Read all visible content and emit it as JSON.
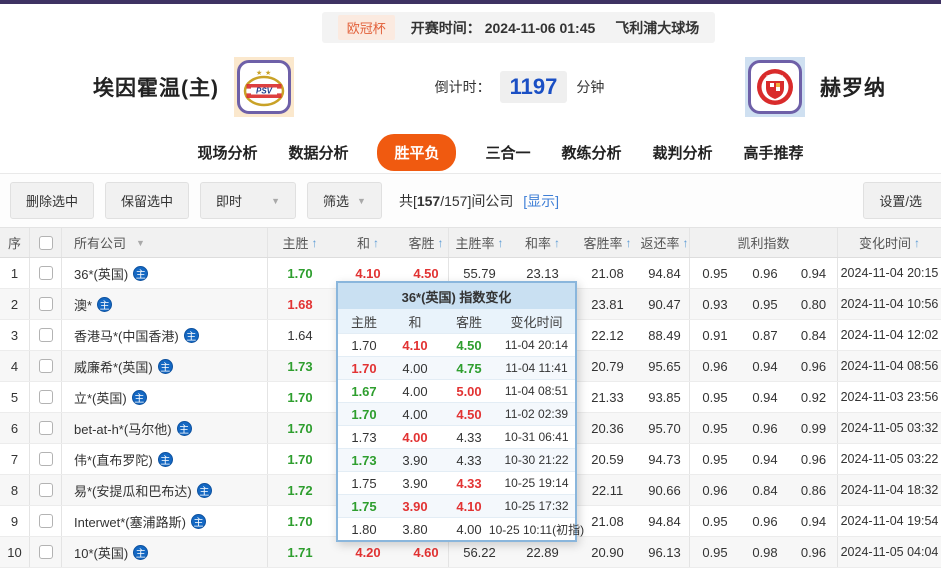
{
  "icons": {
    "sort_arrow": "↑",
    "caret_down": "▼",
    "home_badge": "主"
  },
  "top": {
    "league": "欧冠杯",
    "kickoff_label": "开赛时间：",
    "kickoff_time": "2024-11-06 01:45",
    "venue": "飞利浦大球场"
  },
  "teams": {
    "home_name": "埃因霍温(主)",
    "home_logo": "PSV",
    "away_name": "赫罗纳",
    "away_logo": "GIRONA",
    "countdown_label": "倒计时：",
    "countdown_value": "1197",
    "countdown_unit": "分钟"
  },
  "tabs": [
    {
      "label": "现场分析",
      "active": false
    },
    {
      "label": "数据分析",
      "active": false
    },
    {
      "label": "胜平负",
      "active": true
    },
    {
      "label": "三合一",
      "active": false
    },
    {
      "label": "教练分析",
      "active": false
    },
    {
      "label": "裁判分析",
      "active": false
    },
    {
      "label": "高手推荐",
      "active": false
    }
  ],
  "toolbar": {
    "delete_btn": "删除选中",
    "keep_btn": "保留选中",
    "time_filter": "即时",
    "filter_btn": "筛选",
    "count_prefix": "共[",
    "count_current": "157",
    "count_suffix": "/157]间公司",
    "show_link": "[显示]",
    "settings_btn": "设置/选"
  },
  "table": {
    "headers": {
      "seq": "序",
      "company": "所有公司",
      "home": "主胜",
      "draw": "和",
      "away": "客胜",
      "home_rate": "主胜率",
      "draw_rate": "和率",
      "away_rate": "客胜率",
      "return_rate": "返还率",
      "kelly": "凯利指数",
      "time": "变化时间"
    },
    "rows": [
      {
        "seq": "1",
        "company": "36*(英国)",
        "home": {
          "v": "1.70",
          "c": "green"
        },
        "draw": {
          "v": "4.10",
          "c": "red"
        },
        "away": {
          "v": "4.50",
          "c": "red"
        },
        "hr": "55.79",
        "dr": "23.13",
        "ar": "21.08",
        "rr": "94.84",
        "kelly": [
          "0.95",
          "0.96",
          "0.94"
        ],
        "time": "2024-11-04 20:15"
      },
      {
        "seq": "2",
        "company": "澳*",
        "home": {
          "v": "1.68",
          "c": "red"
        },
        "draw": null,
        "away": null,
        "hr": null,
        "dr": null,
        "ar": "23.81",
        "rr": "90.47",
        "kelly": [
          "0.93",
          "0.95",
          "0.80"
        ],
        "time": "2024-11-04 10:56"
      },
      {
        "seq": "3",
        "company": "香港马*(中国香港)",
        "home": {
          "v": "1.64",
          "c": "black"
        },
        "draw": null,
        "away": null,
        "hr": null,
        "dr": null,
        "ar": "22.12",
        "rr": "88.49",
        "kelly": [
          "0.91",
          "0.87",
          "0.84"
        ],
        "time": "2024-11-04 12:02"
      },
      {
        "seq": "4",
        "company": "威廉希*(英国)",
        "home": {
          "v": "1.73",
          "c": "green"
        },
        "draw": null,
        "away": null,
        "hr": null,
        "dr": null,
        "ar": "20.79",
        "rr": "95.65",
        "kelly": [
          "0.96",
          "0.94",
          "0.96"
        ],
        "time": "2024-11-04 08:56"
      },
      {
        "seq": "5",
        "company": "立*(英国)",
        "home": {
          "v": "1.70",
          "c": "green"
        },
        "draw": null,
        "away": null,
        "hr": null,
        "dr": null,
        "ar": "21.33",
        "rr": "93.85",
        "kelly": [
          "0.95",
          "0.94",
          "0.92"
        ],
        "time": "2024-11-03 23:56"
      },
      {
        "seq": "6",
        "company": "bet-at-h*(马尔他)",
        "home": {
          "v": "1.70",
          "c": "green"
        },
        "draw": null,
        "away": null,
        "hr": null,
        "dr": null,
        "ar": "20.36",
        "rr": "95.70",
        "kelly": [
          "0.95",
          "0.96",
          "0.99"
        ],
        "time": "2024-11-05 03:32"
      },
      {
        "seq": "7",
        "company": "伟*(直布罗陀)",
        "home": {
          "v": "1.70",
          "c": "green"
        },
        "draw": null,
        "away": null,
        "hr": null,
        "dr": null,
        "ar": "20.59",
        "rr": "94.73",
        "kelly": [
          "0.95",
          "0.94",
          "0.96"
        ],
        "time": "2024-11-05 03:22"
      },
      {
        "seq": "8",
        "company": "易*(安提瓜和巴布达)",
        "home": {
          "v": "1.72",
          "c": "green"
        },
        "draw": null,
        "away": null,
        "hr": null,
        "dr": null,
        "ar": "22.11",
        "rr": "90.66",
        "kelly": [
          "0.96",
          "0.84",
          "0.86"
        ],
        "time": "2024-11-04 18:32"
      },
      {
        "seq": "9",
        "company": "Interwet*(塞浦路斯)",
        "home": {
          "v": "1.70",
          "c": "green"
        },
        "draw": null,
        "away": null,
        "hr": null,
        "dr": null,
        "ar": "21.08",
        "rr": "94.84",
        "kelly": [
          "0.95",
          "0.96",
          "0.94"
        ],
        "time": "2024-11-04 19:54"
      },
      {
        "seq": "10",
        "company": "10*(英国)",
        "home": {
          "v": "1.71",
          "c": "green"
        },
        "draw": {
          "v": "4.20",
          "c": "red"
        },
        "away": {
          "v": "4.60",
          "c": "red"
        },
        "hr": "56.22",
        "dr": "22.89",
        "ar": "20.90",
        "rr": "96.13",
        "kelly": [
          "0.95",
          "0.98",
          "0.96"
        ],
        "time": "2024-11-05 04:04"
      }
    ]
  },
  "popup": {
    "title": "36*(英国) 指数变化",
    "headers": {
      "home": "主胜",
      "draw": "和",
      "away": "客胜",
      "time": "变化时间"
    },
    "rows": [
      {
        "home": {
          "v": "1.70",
          "c": "black"
        },
        "draw": {
          "v": "4.10",
          "c": "red"
        },
        "away": {
          "v": "4.50",
          "c": "green"
        },
        "time": "11-04 20:14"
      },
      {
        "home": {
          "v": "1.70",
          "c": "red"
        },
        "draw": {
          "v": "4.00",
          "c": "black"
        },
        "away": {
          "v": "4.75",
          "c": "green"
        },
        "time": "11-04 11:41"
      },
      {
        "home": {
          "v": "1.67",
          "c": "green"
        },
        "draw": {
          "v": "4.00",
          "c": "black"
        },
        "away": {
          "v": "5.00",
          "c": "red"
        },
        "time": "11-04 08:51"
      },
      {
        "home": {
          "v": "1.70",
          "c": "green"
        },
        "draw": {
          "v": "4.00",
          "c": "black"
        },
        "away": {
          "v": "4.50",
          "c": "red"
        },
        "time": "11-02 02:39"
      },
      {
        "home": {
          "v": "1.73",
          "c": "black"
        },
        "draw": {
          "v": "4.00",
          "c": "red"
        },
        "away": {
          "v": "4.33",
          "c": "black"
        },
        "time": "10-31 06:41"
      },
      {
        "home": {
          "v": "1.73",
          "c": "green"
        },
        "draw": {
          "v": "3.90",
          "c": "black"
        },
        "away": {
          "v": "4.33",
          "c": "black"
        },
        "time": "10-30 21:22"
      },
      {
        "home": {
          "v": "1.75",
          "c": "black"
        },
        "draw": {
          "v": "3.90",
          "c": "black"
        },
        "away": {
          "v": "4.33",
          "c": "red"
        },
        "time": "10-25 19:14"
      },
      {
        "home": {
          "v": "1.75",
          "c": "green"
        },
        "draw": {
          "v": "3.90",
          "c": "red"
        },
        "away": {
          "v": "4.10",
          "c": "red"
        },
        "time": "10-25 17:32"
      },
      {
        "home": {
          "v": "1.80",
          "c": "black"
        },
        "draw": {
          "v": "3.80",
          "c": "black"
        },
        "away": {
          "v": "4.00",
          "c": "black"
        },
        "time": "10-25 10:11(初指)"
      }
    ]
  },
  "colors": {
    "accent_orange": "#f05a10",
    "odds_up_red": "#e23333",
    "odds_down_green": "#2e9e2e",
    "countdown_blue": "#1a4fc4",
    "popup_border_blue": "#8ab6dc",
    "topbar_purple": "#3e3263"
  }
}
